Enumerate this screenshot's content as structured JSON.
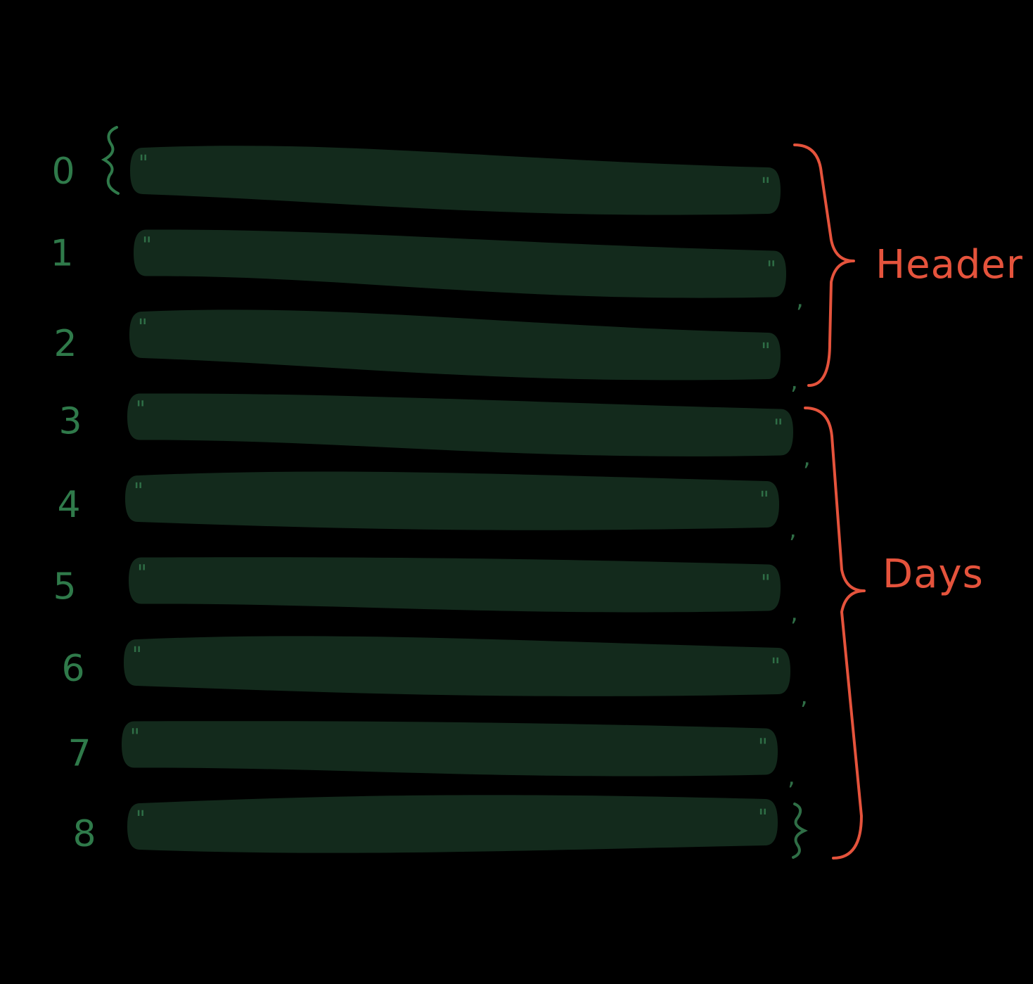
{
  "colors": {
    "background": "#000000",
    "row_fill": "#132a1c",
    "row_ink": "#2f6e46",
    "index_ink": "#2f7a4a",
    "group_ink": "#e5533c"
  },
  "rows": [
    {
      "index": "0",
      "open_mark": "\"",
      "close_mark": "\"",
      "separator": "}"
    },
    {
      "index": "1",
      "open_mark": "\"",
      "close_mark": "\"",
      "separator": ","
    },
    {
      "index": "2",
      "open_mark": "\"",
      "close_mark": "\"",
      "separator": ","
    },
    {
      "index": "3",
      "open_mark": "\"",
      "close_mark": "\"",
      "separator": ","
    },
    {
      "index": "4",
      "open_mark": "\"",
      "close_mark": "\"",
      "separator": ","
    },
    {
      "index": "5",
      "open_mark": "\"",
      "close_mark": "\"",
      "separator": ","
    },
    {
      "index": "6",
      "open_mark": "\"",
      "close_mark": "\"",
      "separator": ","
    },
    {
      "index": "7",
      "open_mark": "\"",
      "close_mark": "\"",
      "separator": ","
    },
    {
      "index": "8",
      "open_mark": "\"",
      "close_mark": "\"",
      "separator": "}"
    }
  ],
  "groups": [
    {
      "label": "Header",
      "from_row": 0,
      "to_row": 2
    },
    {
      "label": "Days",
      "from_row": 3,
      "to_row": 8
    }
  ]
}
